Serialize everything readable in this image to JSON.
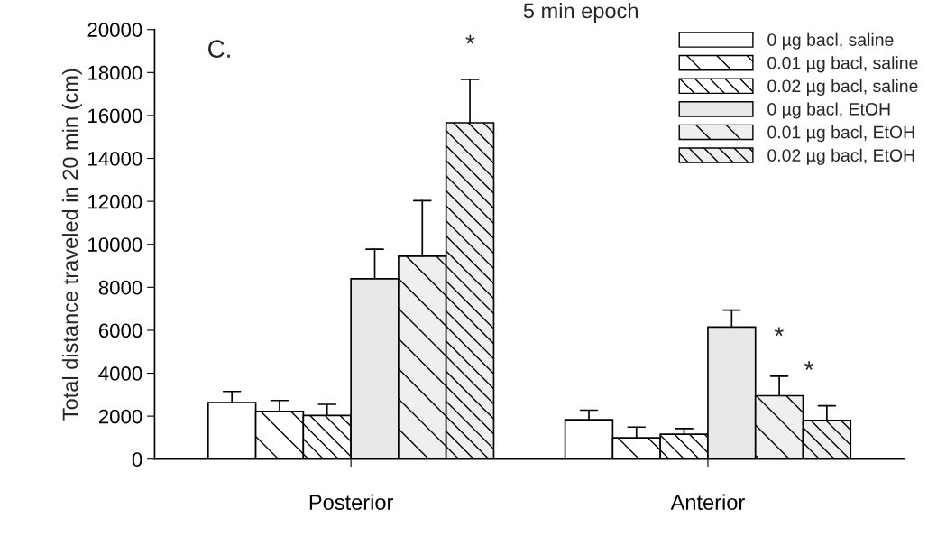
{
  "chart_data": {
    "type": "bar",
    "title": "5 min epoch",
    "ylabel": "Total distance traveled in 20 min (cm)",
    "categories": [
      "Posterior",
      "Anterior"
    ],
    "series": [
      {
        "name": "0 µg bacl, saline",
        "color": "#ffffff",
        "values": [
          2630,
          1830
        ],
        "errors": [
          [
            2630,
            3150
          ],
          [
            1830,
            2280
          ]
        ]
      },
      {
        "name": "0.01 µg bacl, saline",
        "color": "#ffffff",
        "values": [
          2220,
          990
        ],
        "errors": [
          [
            2220,
            2730
          ],
          [
            990,
            1490
          ]
        ]
      },
      {
        "name": "0.02 µg bacl, saline",
        "color": "#ffffff",
        "values": [
          2030,
          1160
        ],
        "errors": [
          [
            2030,
            2550
          ],
          [
            1160,
            1420
          ]
        ]
      },
      {
        "name": "0 µg bacl, EtOH",
        "color": "#e8e8e8",
        "values": [
          8400,
          6150
        ],
        "errors": [
          [
            8400,
            9770
          ],
          [
            6150,
            6940
          ]
        ]
      },
      {
        "name": "0.01 µg bacl, EtOH",
        "color": "#efefef",
        "values": [
          9450,
          2950
        ],
        "errors": [
          [
            9450,
            12030
          ],
          [
            2950,
            3860
          ]
        ]
      },
      {
        "name": "0.02 µg bacl, EtOH",
        "color": "#efefef",
        "values": [
          15660,
          1800
        ],
        "errors": [
          [
            15660,
            17680
          ],
          [
            1800,
            2480
          ]
        ]
      }
    ],
    "ylim": [
      0,
      20000
    ],
    "yticks": [
      0,
      2000,
      4000,
      6000,
      8000,
      10000,
      12000,
      14000,
      16000,
      18000,
      20000
    ],
    "grid": false,
    "legend": "top right",
    "annotations": [
      "C.",
      "*",
      "*",
      "*"
    ]
  }
}
